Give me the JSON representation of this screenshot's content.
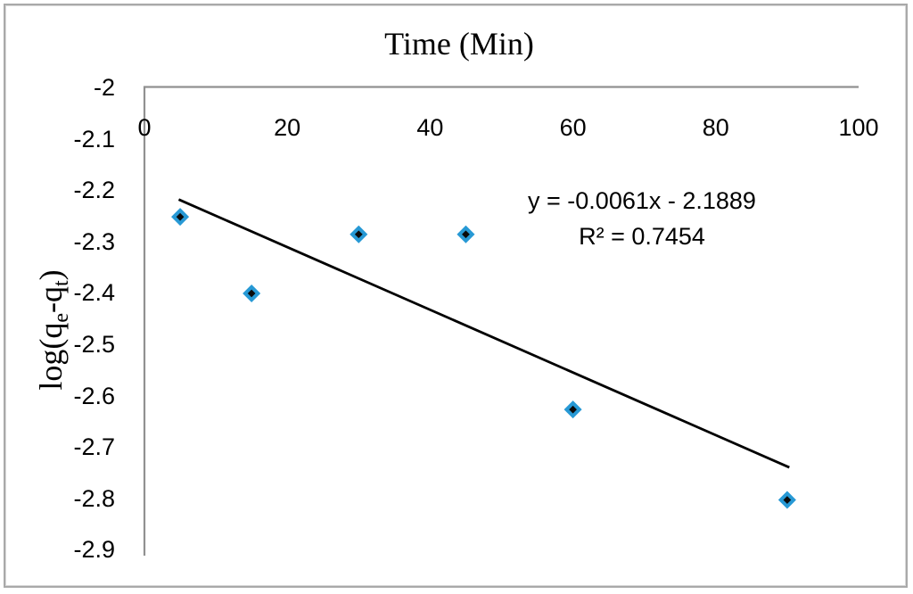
{
  "chart_data": {
    "type": "scatter",
    "title": "Time (Min)",
    "ylabel": "log(qe-qt)",
    "ylabel_parts": {
      "prefix": "log(q",
      "sub_1": "e",
      "middle": "-q",
      "sub_2": "t",
      "suffix": ")"
    },
    "xlim": [
      0,
      100
    ],
    "ylim": [
      -2.9,
      -2
    ],
    "x_ticks": [
      "0",
      "20",
      "40",
      "60",
      "80",
      "100"
    ],
    "x_tick_values": [
      0,
      20,
      40,
      60,
      80,
      100
    ],
    "y_ticks": [
      "-2",
      "-2.1",
      "-2.2",
      "-2.3",
      "-2.4",
      "-2.5",
      "-2.6",
      "-2.7",
      "-2.8",
      "-2.9"
    ],
    "y_tick_values": [
      -2,
      -2.1,
      -2.2,
      -2.3,
      -2.4,
      -2.5,
      -2.6,
      -2.7,
      -2.8,
      -2.9
    ],
    "points": [
      {
        "x": 5,
        "y": -2.252
      },
      {
        "x": 15,
        "y": -2.401
      },
      {
        "x": 30,
        "y": -2.286
      },
      {
        "x": 45,
        "y": -2.286
      },
      {
        "x": 60,
        "y": -2.627
      },
      {
        "x": 90,
        "y": -2.803
      }
    ],
    "trendline": {
      "slope": -0.0061,
      "intercept": -2.1889,
      "x_start": 4.8,
      "x_end": 90.3,
      "equation": "y = -0.0061x - 2.1889",
      "r_squared": "R² = 0.7454"
    },
    "legend": "none",
    "grid": "off",
    "colors": {
      "marker_fill": "#0a0a0a",
      "marker_stroke": "#2799d5",
      "trendline": "#000000",
      "axis": "#919191",
      "frame": "#a9a9a9",
      "text": "#000000"
    }
  }
}
